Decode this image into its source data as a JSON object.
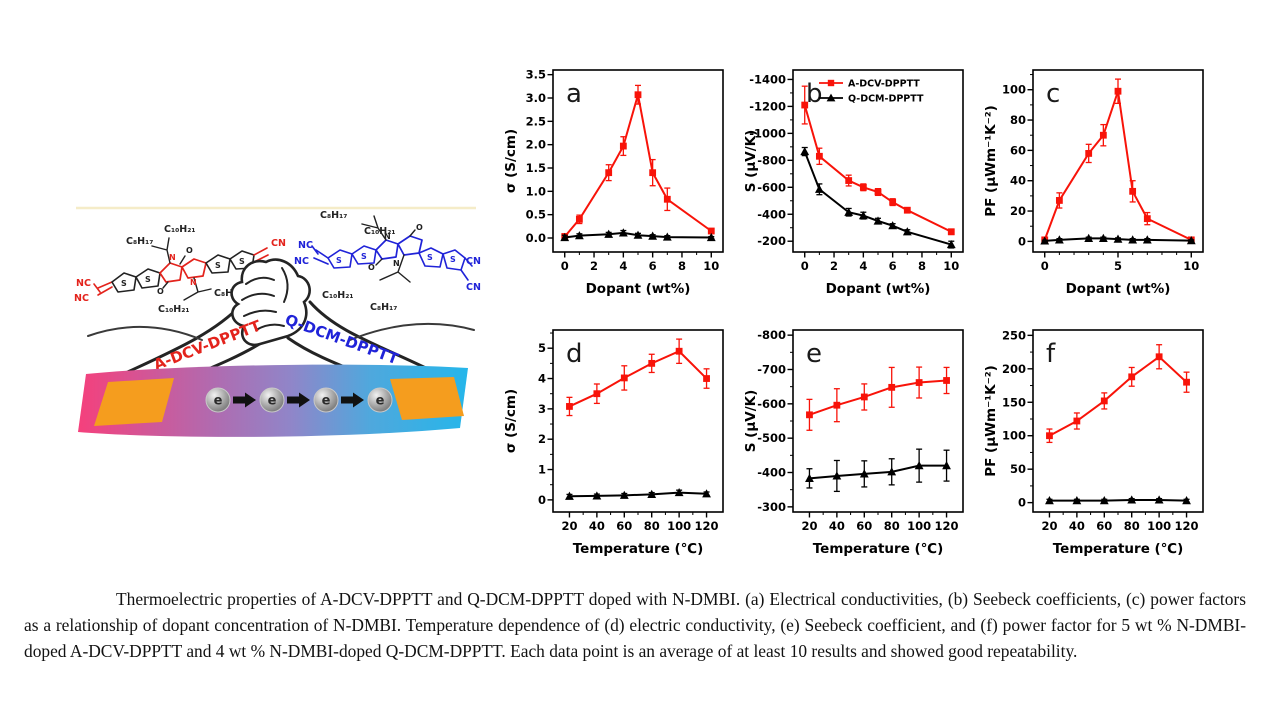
{
  "figure": {
    "caption": "Thermoelectric properties of A-DCV-DPPTT and Q-DCM-DPPTT doped with N-DMBI. (a) Electrical conductivities, (b) Seebeck coefficients, (c) power factors as a relationship of dopant concentration of N-DMBI. Temperature dependence of (d) electric conductivity, (e) Seebeck coefficient, and (f) power factor for 5 wt % N-DMBI-doped A-DCV-DPPTT and 4 wt % N-DMBI-doped Q-DCM-DPPTT. Each data point is an average of at least 10 results and showed good repeatability.",
    "illustration": {
      "polymer_left_name": "A-DCV-DPPTT",
      "polymer_right_name": "Q-DCM-DPPTT",
      "electron_symbol": "e",
      "colors": {
        "polymer_left": "#e3231c",
        "polymer_right": "#2023d8",
        "electrode_orange": "#f59d1e",
        "film_pink": "#f5407c",
        "film_blue": "#25b6ea"
      },
      "molecule_left_labels": {
        "nc_top": "NC",
        "nc_bottom": "NC",
        "alkyl_top_1": "C₈H₁₇",
        "alkyl_top_2": "C₁₀H₂₁",
        "alkyl_bottom_1": "C₁₀H₂₁",
        "alkyl_bottom_2": "C₈H₁₇",
        "cn_right_1": "CN",
        "cn_right_2": "NC",
        "s1": "S",
        "s2": "S",
        "s3": "S",
        "s4": "S",
        "n1": "N",
        "n2": "N",
        "o1": "O",
        "o2": "O"
      },
      "molecule_right_labels": {
        "nc_left_1": "NC",
        "nc_left_2": "NC",
        "alkyl_top_1": "C₈H₁₇",
        "alkyl_top_2": "C₁₀H₂₁",
        "alkyl_bottom_1": "C₁₀H₂₁",
        "alkyl_bottom_2": "C₈H₁₇",
        "cn_right_1": "CN",
        "cn_right_2": "CN",
        "s1": "S",
        "s2": "S",
        "s3": "S",
        "s4": "S",
        "n1": "N",
        "n2": "N",
        "o1": "O",
        "o2": "O"
      }
    }
  },
  "chart_data": [
    {
      "panel": "a",
      "type": "line",
      "xlabel": "Dopant (wt%)",
      "ylabel": "σ (S/cm)",
      "xlim": [
        -0.8,
        10.8
      ],
      "ylim": [
        -0.3,
        3.6
      ],
      "xticks": [
        0,
        2,
        4,
        6,
        8,
        10
      ],
      "xtick_labels": [
        "0",
        "2",
        "4",
        "6",
        "8",
        "10"
      ],
      "xminor": [
        1,
        3,
        5,
        7,
        9
      ],
      "yticks": [
        0,
        0.5,
        1,
        1.5,
        2,
        2.5,
        3,
        3.5
      ],
      "ytick_labels": [
        "0.0",
        "0.5",
        "1.0",
        "1.5",
        "2.0",
        "2.5",
        "3.0",
        "3.5"
      ],
      "yminor": [],
      "x": [
        0,
        1,
        3,
        4,
        5,
        6,
        7,
        10
      ],
      "series": [
        {
          "name": "A-DCV-DPPTT",
          "color": "#f81309",
          "marker": "square",
          "values": [
            0.03,
            0.4,
            1.4,
            1.97,
            3.07,
            1.4,
            0.83,
            0.15
          ],
          "errors": [
            0.06,
            0.09,
            0.17,
            0.2,
            0.2,
            0.28,
            0.24,
            0.05
          ]
        },
        {
          "name": "Q-DCM-DPPTT",
          "color": "#000000",
          "marker": "triangle",
          "values": [
            0.01,
            0.05,
            0.08,
            0.11,
            0.06,
            0.04,
            0.02,
            0.01
          ],
          "errors": [
            0.05,
            0.04,
            0.04,
            0.05,
            0.04,
            0.03,
            0.03,
            0.02
          ]
        }
      ],
      "show_legend": false
    },
    {
      "panel": "b",
      "type": "line",
      "xlabel": "Dopant (wt%)",
      "ylabel": "S (μV/K)",
      "xlim": [
        -0.8,
        10.8
      ],
      "ylim": [
        -120,
        -1470
      ],
      "xticks": [
        0,
        2,
        4,
        6,
        8,
        10
      ],
      "xtick_labels": [
        "0",
        "2",
        "4",
        "6",
        "8",
        "10"
      ],
      "xminor": [
        1,
        3,
        5,
        7,
        9
      ],
      "yticks": [
        -200,
        -400,
        -600,
        -800,
        -1000,
        -1200,
        -1400
      ],
      "ytick_labels": [
        "-200",
        "-400",
        "-600",
        "-800",
        "-1000",
        "-1200",
        "-1400"
      ],
      "yminor": [
        -300,
        -500,
        -700,
        -900,
        -1100,
        -1300
      ],
      "x": [
        0,
        1,
        3,
        4,
        5,
        6,
        7,
        10
      ],
      "series": [
        {
          "name": "A-DCV-DPPTT",
          "color": "#f81309",
          "marker": "square",
          "values": [
            -1210,
            -830,
            -650,
            -600,
            -565,
            -490,
            -430,
            -270
          ],
          "errors": [
            140,
            60,
            40,
            25,
            25,
            25,
            15,
            20
          ]
        },
        {
          "name": "Q-DCM-DPPTT",
          "color": "#000000",
          "marker": "triangle",
          "values": [
            -865,
            -585,
            -415,
            -390,
            -350,
            -315,
            -270,
            -175
          ],
          "errors": [
            30,
            40,
            28,
            25,
            20,
            15,
            15,
            25
          ]
        }
      ],
      "show_legend": true
    },
    {
      "panel": "c",
      "type": "line",
      "xlabel": "Dopant (wt%)",
      "ylabel": "PF (μWm⁻¹K⁻²)",
      "xlim": [
        -0.8,
        10.8
      ],
      "ylim": [
        -7,
        113
      ],
      "xticks": [
        0,
        5,
        10
      ],
      "xtick_labels": [
        "0",
        "5",
        "10"
      ],
      "xminor": [
        1,
        2,
        3,
        4,
        6,
        7,
        8,
        9
      ],
      "yticks": [
        0,
        20,
        40,
        60,
        80,
        100
      ],
      "ytick_labels": [
        "0",
        "20",
        "40",
        "60",
        "80",
        "100"
      ],
      "yminor": [
        10,
        30,
        50,
        70,
        90,
        110
      ],
      "x": [
        0,
        1,
        3,
        4,
        5,
        6,
        7,
        10
      ],
      "series": [
        {
          "name": "A-DCV-DPPTT",
          "color": "#f81309",
          "marker": "square",
          "values": [
            1,
            27,
            58,
            70,
            99,
            33,
            15,
            1
          ],
          "errors": [
            1,
            5,
            6,
            7,
            8,
            7,
            4,
            1
          ]
        },
        {
          "name": "Q-DCM-DPPTT",
          "color": "#000000",
          "marker": "triangle",
          "values": [
            0.3,
            1,
            2,
            2,
            1.5,
            1,
            1,
            0.5
          ],
          "errors": [
            0.5,
            0.8,
            0.8,
            0.8,
            0.8,
            0.8,
            0.8,
            0.5
          ]
        }
      ],
      "show_legend": false
    },
    {
      "panel": "d",
      "type": "line",
      "xlabel": "Temperature (℃)",
      "ylabel": "σ (S/cm)",
      "xlim": [
        8,
        132
      ],
      "ylim": [
        -0.4,
        5.6
      ],
      "xticks": [
        20,
        40,
        60,
        80,
        100,
        120
      ],
      "xtick_labels": [
        "20",
        "40",
        "60",
        "80",
        "100",
        "120"
      ],
      "xminor": [
        30,
        50,
        70,
        90,
        110
      ],
      "yticks": [
        0,
        1,
        2,
        3,
        4,
        5
      ],
      "ytick_labels": [
        "0",
        "1",
        "2",
        "3",
        "4",
        "5"
      ],
      "yminor": [
        0.5,
        1.5,
        2.5,
        3.5,
        4.5,
        5.5
      ],
      "x": [
        20,
        40,
        60,
        80,
        100,
        120
      ],
      "series": [
        {
          "name": "A-DCV-DPPTT",
          "color": "#f81309",
          "marker": "square",
          "values": [
            3.08,
            3.5,
            4.02,
            4.5,
            4.9,
            4.0
          ],
          "errors": [
            0.3,
            0.32,
            0.4,
            0.3,
            0.4,
            0.32
          ]
        },
        {
          "name": "Q-DCM-DPPTT",
          "color": "#000000",
          "marker": "triangle",
          "values": [
            0.12,
            0.13,
            0.15,
            0.18,
            0.24,
            0.2
          ],
          "errors": [
            0.06,
            0.06,
            0.06,
            0.06,
            0.08,
            0.06
          ]
        }
      ],
      "show_legend": false
    },
    {
      "panel": "e",
      "type": "line",
      "xlabel": "Temperature (℃)",
      "ylabel": "S (μV/K)",
      "xlim": [
        8,
        132
      ],
      "ylim": [
        -285,
        -815
      ],
      "xticks": [
        20,
        40,
        60,
        80,
        100,
        120
      ],
      "xtick_labels": [
        "20",
        "40",
        "60",
        "80",
        "100",
        "120"
      ],
      "xminor": [
        30,
        50,
        70,
        90,
        110
      ],
      "yticks": [
        -300,
        -400,
        -500,
        -600,
        -700,
        -800
      ],
      "ytick_labels": [
        "-300",
        "-400",
        "-500",
        "-600",
        "-700",
        "-800"
      ],
      "yminor": [
        -350,
        -450,
        -550,
        -650,
        -750
      ],
      "x": [
        20,
        40,
        60,
        80,
        100,
        120
      ],
      "series": [
        {
          "name": "A-DCV-DPPTT",
          "color": "#f81309",
          "marker": "square",
          "values": [
            -568,
            -596,
            -620,
            -648,
            -662,
            -668
          ],
          "errors": [
            45,
            48,
            38,
            58,
            45,
            38
          ]
        },
        {
          "name": "Q-DCM-DPPTT",
          "color": "#000000",
          "marker": "triangle",
          "values": [
            -383,
            -390,
            -396,
            -402,
            -420,
            -420
          ],
          "errors": [
            28,
            45,
            38,
            38,
            48,
            45
          ]
        }
      ],
      "show_legend": false
    },
    {
      "panel": "f",
      "type": "line",
      "xlabel": "Temperature (℃)",
      "ylabel": "PF (μWm⁻¹K⁻²)",
      "xlim": [
        8,
        132
      ],
      "ylim": [
        -14,
        258
      ],
      "xticks": [
        20,
        40,
        60,
        80,
        100,
        120
      ],
      "xtick_labels": [
        "20",
        "40",
        "60",
        "80",
        "100",
        "120"
      ],
      "xminor": [
        30,
        50,
        70,
        90,
        110
      ],
      "yticks": [
        0,
        50,
        100,
        150,
        200,
        250
      ],
      "ytick_labels": [
        "0",
        "50",
        "100",
        "150",
        "200",
        "250"
      ],
      "yminor": [
        25,
        75,
        125,
        175,
        225
      ],
      "x": [
        20,
        40,
        60,
        80,
        100,
        120
      ],
      "series": [
        {
          "name": "A-DCV-DPPTT",
          "color": "#f81309",
          "marker": "square",
          "values": [
            100,
            122,
            152,
            188,
            218,
            180
          ],
          "errors": [
            10,
            12,
            12,
            14,
            18,
            15
          ]
        },
        {
          "name": "Q-DCM-DPPTT",
          "color": "#000000",
          "marker": "triangle",
          "values": [
            3,
            3,
            3,
            4,
            4,
            3
          ],
          "errors": [
            2,
            2,
            2,
            2,
            2,
            2
          ]
        }
      ],
      "show_legend": false
    }
  ]
}
